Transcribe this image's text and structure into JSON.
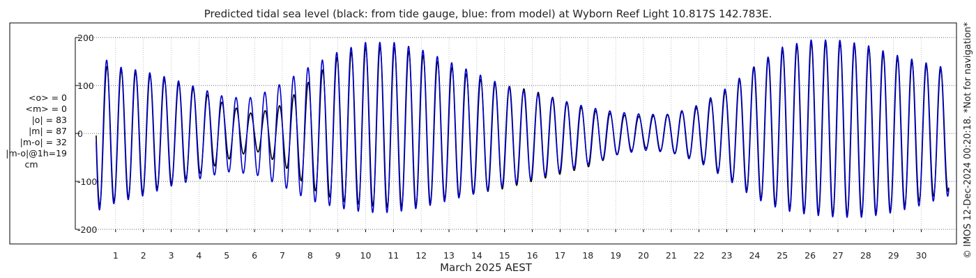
{
  "chart_data": {
    "type": "line",
    "title": "Predicted tidal sea level (black: from tide gauge, blue: from model) at Wyborn Reef Light 10.817S 142.783E.",
    "xlabel": "March 2025 AEST",
    "ylabel": "",
    "xlim": [
      0,
      31
    ],
    "ylim": [
      -200,
      200
    ],
    "x_ticks": [
      1,
      2,
      3,
      4,
      5,
      6,
      7,
      8,
      9,
      10,
      11,
      12,
      13,
      14,
      15,
      16,
      17,
      18,
      19,
      20,
      21,
      22,
      23,
      24,
      25,
      26,
      27,
      28,
      29,
      30
    ],
    "x_tick_labels": [
      "1",
      "2",
      "3",
      "4",
      "5",
      "6",
      "7",
      "8",
      "9",
      "10",
      "11",
      "12",
      "13",
      "14",
      "15",
      "16",
      "17",
      "18",
      "19",
      "20",
      "21",
      "22",
      "23",
      "24",
      "25",
      "26",
      "27",
      "28",
      "29",
      "30"
    ],
    "y_ticks": [
      -200,
      -100,
      0,
      100,
      200
    ],
    "y_tick_labels": [
      "-200",
      "-100",
      "0",
      "100",
      "200"
    ],
    "grid": true,
    "legend": "none",
    "series": [
      {
        "name": "from tide gauge",
        "color": "#000000",
        "envelope": {
          "days": [
            0.0,
            1.0,
            2.0,
            3.0,
            4.0,
            5.0,
            6.0,
            7.0,
            8.0,
            9.0,
            10.0,
            11.0,
            12.0,
            13.0,
            14.0,
            15.0,
            16.0,
            17.0,
            18.0,
            19.0,
            20.0,
            21.0,
            22.0,
            23.0,
            24.0,
            25.0,
            26.0,
            27.0,
            28.0,
            29.0,
            30.0,
            31.0
          ],
          "highs": [
            150,
            135,
            125,
            110,
            90,
            60,
            40,
            60,
            110,
            160,
            180,
            180,
            165,
            140,
            115,
            100,
            90,
            70,
            50,
            40,
            35,
            40,
            55,
            90,
            140,
            175,
            190,
            190,
            180,
            160,
            145,
            130
          ],
          "lows": [
            -160,
            -140,
            -125,
            -105,
            -85,
            -55,
            -35,
            -65,
            -115,
            -140,
            -150,
            -155,
            -150,
            -135,
            -125,
            -115,
            -100,
            -85,
            -70,
            -45,
            -30,
            -40,
            -55,
            -90,
            -130,
            -155,
            -165,
            -170,
            -170,
            -160,
            -140,
            -120
          ]
        }
      },
      {
        "name": "from model",
        "color": "#0000cc",
        "envelope": {
          "days": [
            0.0,
            1.0,
            2.0,
            3.0,
            4.0,
            5.0,
            6.0,
            7.0,
            8.0,
            9.0,
            10.0,
            11.0,
            12.0,
            13.0,
            14.0,
            15.0,
            16.0,
            17.0,
            18.0,
            19.0,
            20.0,
            21.0,
            22.0,
            23.0,
            24.0,
            25.0,
            26.0,
            27.0,
            28.0,
            29.0,
            30.0,
            31.0
          ],
          "highs": [
            180,
            140,
            130,
            115,
            95,
            75,
            75,
            105,
            140,
            170,
            190,
            190,
            175,
            150,
            125,
            100,
            85,
            70,
            55,
            45,
            40,
            40,
            60,
            95,
            140,
            180,
            195,
            195,
            185,
            165,
            150,
            135
          ],
          "lows": [
            -170,
            -145,
            -130,
            -110,
            -95,
            -80,
            -85,
            -110,
            -140,
            -155,
            -165,
            -165,
            -155,
            -140,
            -125,
            -110,
            -95,
            -80,
            -65,
            -45,
            -35,
            -40,
            -60,
            -95,
            -135,
            -160,
            -170,
            -175,
            -175,
            -165,
            -150,
            -130
          ]
        }
      }
    ],
    "stats_labels": [
      "<o> = 0",
      "<m> = 0",
      "|o| = 83",
      "|m| = 87",
      "|m-o| = 32",
      "|m-o|@1h=19",
      "cm"
    ],
    "credit": "© IMOS 12-Dec-2024 00:20:18. *Not for navigation*"
  }
}
